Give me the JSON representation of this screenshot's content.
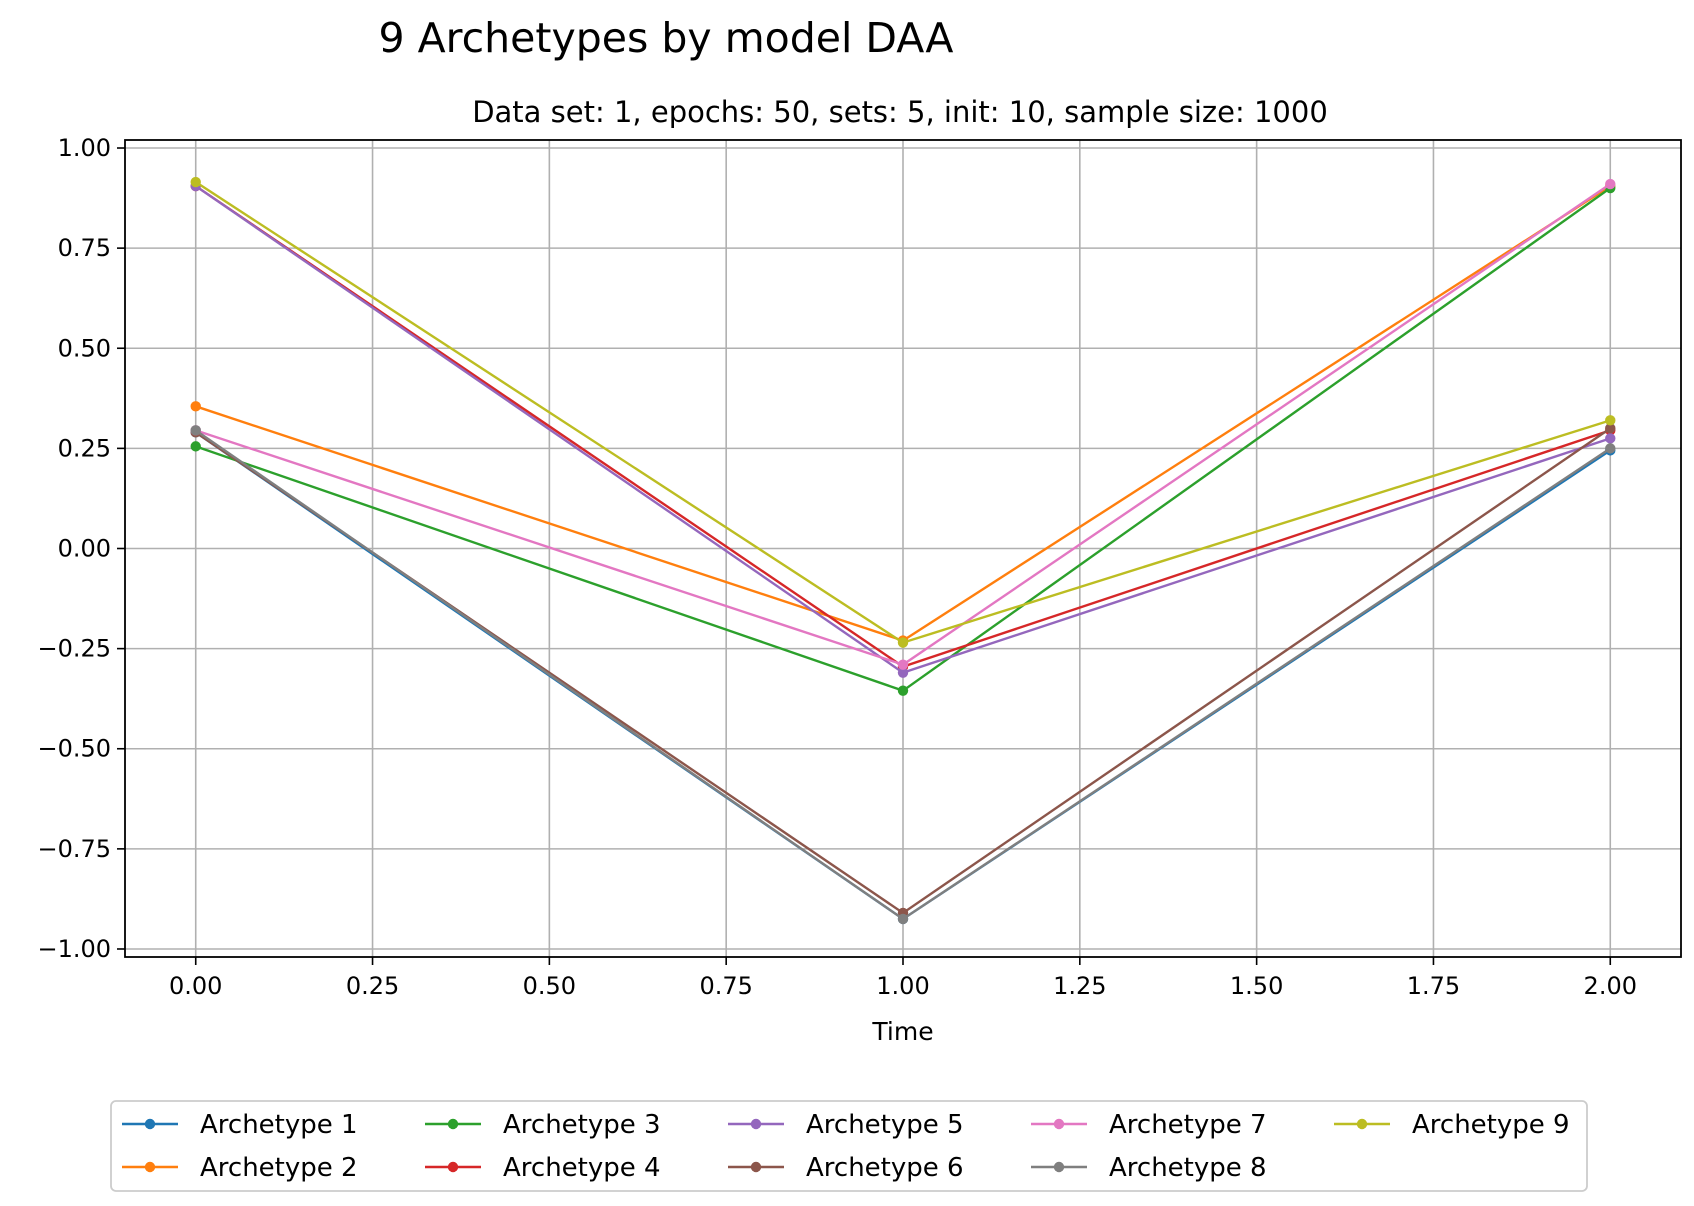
{
  "chart_data": {
    "type": "line",
    "title": "9 Archetypes by model DAA",
    "subtitle": "Data set: 1, epochs: 50, sets: 5, init: 10, sample size: 1000",
    "xlabel": "Time",
    "ylabel": "",
    "xlim": [
      -0.1,
      2.1
    ],
    "ylim": [
      -1.02,
      1.02
    ],
    "x": [
      0,
      1,
      2
    ],
    "xticks": [
      "0.00",
      "0.25",
      "0.50",
      "0.75",
      "1.00",
      "1.25",
      "1.50",
      "1.75",
      "2.00"
    ],
    "yticks": [
      "1.00",
      "0.75",
      "0.50",
      "0.25",
      "0.00",
      "−0.25",
      "−0.50",
      "−0.75",
      "−1.00"
    ],
    "grid": true,
    "legend_position": "bottom-center",
    "series": [
      {
        "name": "Archetype 1",
        "color": "#1f77b4",
        "values": [
          0.29,
          -0.925,
          0.245
        ]
      },
      {
        "name": "Archetype 2",
        "color": "#ff7f0e",
        "values": [
          0.355,
          -0.23,
          0.905
        ]
      },
      {
        "name": "Archetype 3",
        "color": "#2ca02c",
        "values": [
          0.255,
          -0.355,
          0.9
        ]
      },
      {
        "name": "Archetype 4",
        "color": "#d62728",
        "values": [
          0.905,
          -0.295,
          0.295
        ]
      },
      {
        "name": "Archetype 5",
        "color": "#9467bd",
        "values": [
          0.905,
          -0.31,
          0.275
        ]
      },
      {
        "name": "Archetype 6",
        "color": "#8c564b",
        "values": [
          0.29,
          -0.91,
          0.3
        ]
      },
      {
        "name": "Archetype 7",
        "color": "#e377c2",
        "values": [
          0.295,
          -0.29,
          0.91
        ]
      },
      {
        "name": "Archetype 8",
        "color": "#7f7f7f",
        "values": [
          0.295,
          -0.925,
          0.25
        ]
      },
      {
        "name": "Archetype 9",
        "color": "#bcbd22",
        "values": [
          0.915,
          -0.235,
          0.32
        ]
      }
    ]
  }
}
